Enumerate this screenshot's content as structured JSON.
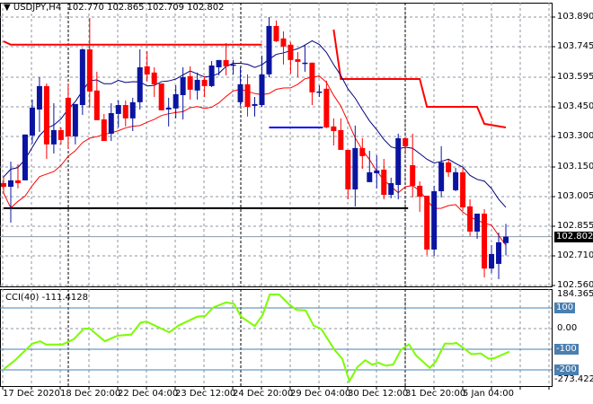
{
  "header": {
    "symbol": "USDJPY,H4",
    "ohlc": "102.770 102.865 102.709 102.802",
    "menu_icon": "triangle-down-icon"
  },
  "colors": {
    "bull": "#0a14a0",
    "bear": "#ff0000",
    "ma_upper": "#000080",
    "ma_lower": "#ff0000",
    "cci": "#7cfc00",
    "level": "#4682b4",
    "grid": "#8c96a0"
  },
  "price_axis": {
    "labels": [
      "103.890",
      "103.745",
      "103.595",
      "103.450",
      "103.300",
      "103.150",
      "103.005",
      "102.855",
      "102.710",
      "102.560"
    ],
    "current": "102.802"
  },
  "cci_panel": {
    "title": "CCI(40) -111.4128",
    "max_label": "184.3655",
    "min_label": "-273.4221",
    "levels": [
      "100",
      "0.00",
      "-100",
      "-200"
    ]
  },
  "time_axis": {
    "labels": [
      "17 Dec 2020",
      "18 Dec 20:00",
      "22 Dec 04:00",
      "23 Dec 12:00",
      "24 Dec 20:00",
      "29 Dec 04:00",
      "30 Dec 12:00",
      "31 Dec 20:00",
      "5 Jan 04:00"
    ]
  },
  "chart_data": {
    "type": "candlestick",
    "ylim": [
      102.56,
      103.89
    ],
    "candles_ohlc": [
      [
        103.067,
        103.098,
        103.018,
        103.049
      ],
      [
        103.049,
        103.174,
        102.871,
        103.081
      ],
      [
        103.081,
        103.161,
        103.041,
        103.067
      ],
      [
        103.081,
        103.308,
        103.081,
        103.308
      ],
      [
        103.303,
        103.481,
        103.263,
        103.441
      ],
      [
        103.432,
        103.592,
        103.321,
        103.548
      ],
      [
        103.548,
        103.561,
        103.187,
        103.259
      ],
      [
        103.259,
        103.463,
        103.214,
        103.33
      ],
      [
        103.33,
        103.343,
        103.259,
        103.281
      ],
      [
        103.49,
        103.561,
        103.236,
        103.299
      ],
      [
        103.299,
        103.459,
        103.259,
        103.459
      ],
      [
        103.454,
        103.735,
        103.405,
        103.73
      ],
      [
        103.73,
        103.886,
        103.441,
        103.521
      ],
      [
        103.526,
        103.619,
        103.379,
        103.379
      ],
      [
        103.383,
        103.41,
        103.276,
        103.276
      ],
      [
        103.312,
        103.463,
        103.276,
        103.414
      ],
      [
        103.41,
        103.477,
        103.343,
        103.454
      ],
      [
        103.454,
        103.477,
        103.348,
        103.388
      ],
      [
        103.388,
        103.49,
        103.325,
        103.468
      ],
      [
        103.468,
        103.73,
        103.432,
        103.641
      ],
      [
        103.646,
        103.721,
        103.57,
        103.606
      ],
      [
        103.615,
        103.641,
        103.494,
        103.557
      ],
      [
        103.561,
        103.561,
        103.428,
        103.428
      ],
      [
        103.432,
        103.49,
        103.348,
        103.441
      ],
      [
        103.437,
        103.552,
        103.388,
        103.508
      ],
      [
        103.503,
        103.641,
        103.383,
        103.592
      ],
      [
        103.597,
        103.646,
        103.481,
        103.53
      ],
      [
        103.526,
        103.615,
        103.481,
        103.579
      ],
      [
        103.579,
        103.597,
        103.494,
        103.548
      ],
      [
        103.548,
        103.672,
        103.543,
        103.65
      ],
      [
        103.641,
        103.677,
        103.601,
        103.677
      ],
      [
        103.677,
        103.761,
        103.601,
        103.646
      ],
      [
        103.65,
        103.677,
        103.606,
        103.655
      ],
      [
        103.468,
        103.641,
        103.45,
        103.557
      ],
      [
        103.557,
        103.606,
        103.397,
        103.445
      ],
      [
        103.45,
        103.494,
        103.397,
        103.459
      ],
      [
        103.454,
        103.699,
        103.445,
        103.606
      ],
      [
        103.606,
        103.89,
        103.592,
        103.846
      ],
      [
        103.846,
        103.873,
        103.766,
        103.77
      ],
      [
        103.784,
        103.819,
        103.655,
        103.744
      ],
      [
        103.753,
        103.766,
        103.61,
        103.677
      ],
      [
        103.681,
        103.717,
        103.592,
        103.668
      ],
      [
        103.664,
        103.753,
        103.619,
        103.664
      ],
      [
        103.664,
        103.664,
        103.454,
        103.517
      ],
      [
        103.521,
        103.552,
        103.494,
        103.521
      ],
      [
        103.535,
        103.575,
        103.339,
        103.343
      ],
      [
        103.348,
        103.388,
        103.254,
        103.325
      ],
      [
        103.33,
        103.388,
        103.232,
        103.232
      ],
      [
        103.232,
        103.232,
        102.987,
        103.036
      ],
      [
        103.036,
        103.352,
        102.952,
        103.241
      ],
      [
        103.241,
        103.29,
        103.138,
        103.201
      ],
      [
        103.072,
        103.227,
        103.072,
        103.121
      ],
      [
        103.116,
        103.205,
        103.041,
        103.13
      ],
      [
        103.134,
        103.187,
        102.987,
        103.009
      ],
      [
        103.009,
        103.094,
        102.992,
        103.067
      ],
      [
        103.058,
        103.312,
        102.987,
        103.29
      ],
      [
        103.29,
        103.294,
        103.227,
        103.25
      ],
      [
        103.156,
        103.312,
        102.996,
        103.054
      ],
      [
        103.054,
        103.076,
        102.925,
        103.0
      ],
      [
        103.005,
        103.005,
        102.711,
        102.738
      ],
      [
        102.738,
        103.054,
        102.707,
        103.027
      ],
      [
        103.027,
        103.25,
        102.996,
        103.17
      ],
      [
        103.17,
        103.183,
        103.098,
        103.121
      ],
      [
        103.032,
        103.143,
        103.027,
        103.121
      ],
      [
        103.121,
        103.147,
        102.929,
        102.947
      ],
      [
        102.952,
        102.987,
        102.805,
        102.827
      ],
      [
        102.827,
        102.916,
        102.791,
        102.916
      ],
      [
        102.916,
        102.938,
        102.6,
        102.644
      ],
      [
        102.644,
        102.76,
        102.622,
        102.716
      ],
      [
        102.667,
        102.822,
        102.591,
        102.774
      ],
      [
        102.77,
        102.865,
        102.709,
        102.802
      ]
    ],
    "step_line_1": [
      [
        1,
        103.77
      ],
      [
        2,
        103.753
      ],
      [
        37,
        103.753
      ]
    ],
    "step_line_2": [
      [
        47,
        103.828
      ],
      [
        48,
        103.583
      ],
      [
        59,
        103.583
      ],
      [
        60,
        103.445
      ],
      [
        67,
        103.445
      ],
      [
        68,
        103.361
      ],
      [
        71,
        103.343
      ]
    ],
    "blue_level": {
      "from_bar": 38,
      "to_bar": 45,
      "price": 103.343
    },
    "black_level": {
      "from_bar": 1,
      "to_bar": 57,
      "price": 102.943
    },
    "cci": {
      "ylim": [
        -273.4221,
        184.3655
      ],
      "points": [
        [
          1,
          -197
        ],
        [
          2.6,
          -153
        ],
        [
          5,
          -73
        ],
        [
          6.1,
          -61
        ],
        [
          6.9,
          -77
        ],
        [
          9.2,
          -77
        ],
        [
          10.8,
          -51
        ],
        [
          12.2,
          0
        ],
        [
          13,
          0
        ],
        [
          15.1,
          -61
        ],
        [
          16.9,
          -34
        ],
        [
          18.8,
          -29
        ],
        [
          20.1,
          29
        ],
        [
          20.9,
          34
        ],
        [
          24.1,
          -18
        ],
        [
          25.4,
          15
        ],
        [
          28,
          58
        ],
        [
          29.1,
          61
        ],
        [
          30.2,
          102
        ],
        [
          32,
          127
        ],
        [
          33.1,
          120
        ],
        [
          34.1,
          58
        ],
        [
          36,
          12
        ],
        [
          37.1,
          66
        ],
        [
          38.1,
          165
        ],
        [
          39.4,
          165
        ],
        [
          40.8,
          117
        ],
        [
          41.8,
          91
        ],
        [
          43.1,
          88
        ],
        [
          44.2,
          15
        ],
        [
          45.3,
          -3
        ],
        [
          47.1,
          -102
        ],
        [
          48.2,
          -146
        ],
        [
          49.2,
          -255
        ],
        [
          50.3,
          -187
        ],
        [
          51.4,
          -153
        ],
        [
          52.4,
          -175
        ],
        [
          53.2,
          -165
        ],
        [
          54.3,
          -180
        ],
        [
          55.3,
          -174
        ],
        [
          56.4,
          -102
        ],
        [
          57.5,
          -76
        ],
        [
          58.5,
          -131
        ],
        [
          60.4,
          -190
        ],
        [
          61.2,
          -161
        ],
        [
          62.5,
          -73
        ],
        [
          63.6,
          -73
        ],
        [
          64.1,
          -69
        ],
        [
          65.1,
          -95
        ],
        [
          66.2,
          -124
        ],
        [
          67.5,
          -120
        ],
        [
          68.6,
          -146
        ],
        [
          69.4,
          -143
        ],
        [
          70.4,
          -128
        ],
        [
          71.5,
          -111.4128
        ]
      ]
    }
  }
}
